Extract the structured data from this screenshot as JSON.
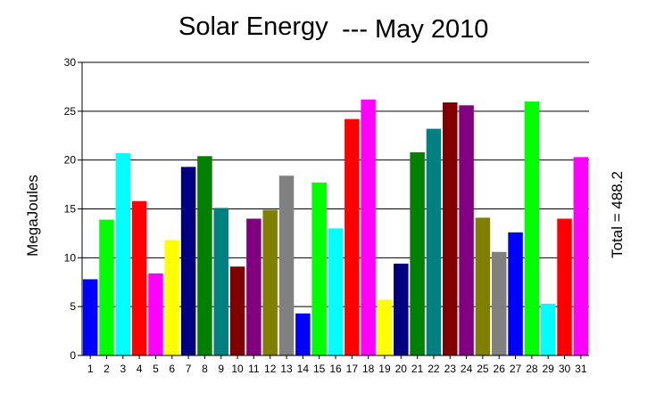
{
  "chart_data": {
    "type": "bar",
    "title_main": "Solar Energy",
    "title_sub": "--- May 2010",
    "ylabel": "MegaJoules",
    "right_label": "Total = 488.2",
    "ylim": [
      0,
      30
    ],
    "yticks": [
      0,
      5,
      10,
      15,
      20,
      25,
      30
    ],
    "grid": true,
    "categories": [
      "1",
      "2",
      "3",
      "4",
      "5",
      "6",
      "7",
      "8",
      "9",
      "10",
      "11",
      "12",
      "13",
      "14",
      "15",
      "16",
      "17",
      "18",
      "19",
      "20",
      "21",
      "22",
      "23",
      "24",
      "25",
      "26",
      "27",
      "28",
      "29",
      "30",
      "31"
    ],
    "values": [
      7.8,
      13.9,
      20.7,
      15.8,
      8.4,
      11.8,
      19.3,
      20.4,
      15.1,
      9.1,
      14.0,
      14.9,
      18.4,
      4.3,
      17.7,
      13.0,
      24.2,
      26.2,
      5.7,
      9.4,
      20.8,
      23.2,
      25.9,
      25.6,
      14.1,
      10.6,
      12.6,
      26.0,
      5.3,
      14.0,
      20.3
    ],
    "colors": [
      "#0000ff",
      "#00ff00",
      "#00ffff",
      "#ff0000",
      "#ff00ff",
      "#ffff00",
      "#000080",
      "#008000",
      "#008080",
      "#800000",
      "#800080",
      "#808000",
      "#808080",
      "#0000ff",
      "#00ff00",
      "#00ffff",
      "#ff0000",
      "#ff00ff",
      "#ffff00",
      "#000080",
      "#008000",
      "#008080",
      "#800000",
      "#800080",
      "#808000",
      "#808080",
      "#0000ff",
      "#00ff00",
      "#00ffff",
      "#ff0000",
      "#ff00ff"
    ]
  }
}
